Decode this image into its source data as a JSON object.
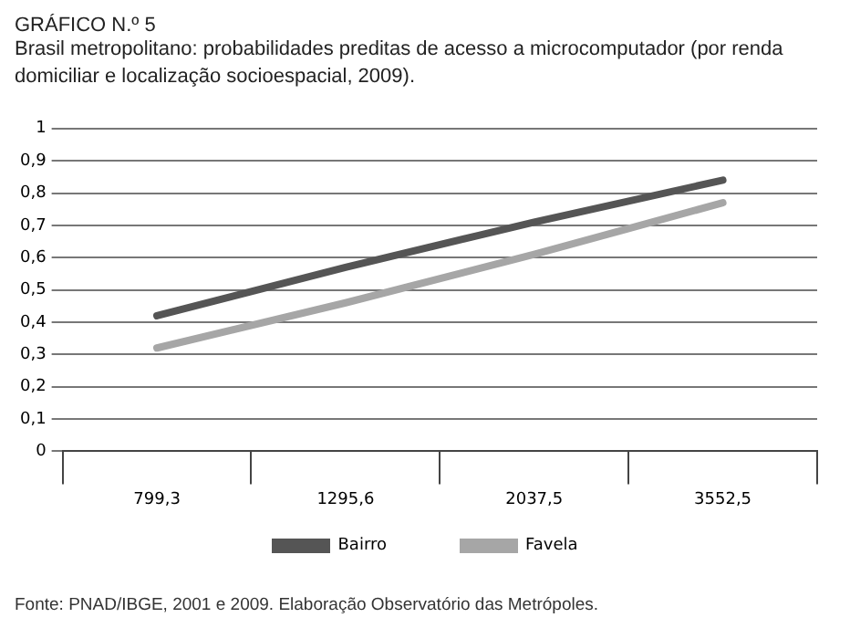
{
  "chart_data": {
    "type": "line",
    "title": "GRÁFICO N.º 5",
    "subtitle": "Brasil metropolitano: probabilidades preditas de acesso a microcomputador (por renda domiciliar e localização socioespacial, 2009).",
    "categories": [
      "799,3",
      "1295,6",
      "2037,5",
      "3552,5"
    ],
    "series": [
      {
        "name": "Bairro",
        "color": "#555555",
        "values": [
          0.42,
          0.57,
          0.71,
          0.84
        ]
      },
      {
        "name": "Favela",
        "color": "#a6a6a6",
        "values": [
          0.32,
          0.46,
          0.61,
          0.77
        ]
      }
    ],
    "ylim": [
      0,
      1
    ],
    "yticks": [
      0,
      {
        "value": 0.1,
        "label": "0,1"
      },
      {
        "value": 0.2,
        "label": "0,2"
      },
      {
        "value": 0.3,
        "label": "0,3"
      },
      {
        "value": 0.4,
        "label": "0,4"
      },
      {
        "value": 0.5,
        "label": "0,5"
      },
      {
        "value": 0.6,
        "label": "0,6"
      },
      {
        "value": 0.7,
        "label": "0,7"
      },
      {
        "value": 0.8,
        "label": "0,8"
      },
      {
        "value": 0.9,
        "label": "0,9"
      },
      1
    ],
    "grid": "y",
    "legend": "bottom",
    "marker": "none",
    "line_style": "solid",
    "annotations": [
      "Fonte: PNAD/IBGE, 2001 e 2009. Elaboração Observatório das Metrópoles."
    ]
  }
}
